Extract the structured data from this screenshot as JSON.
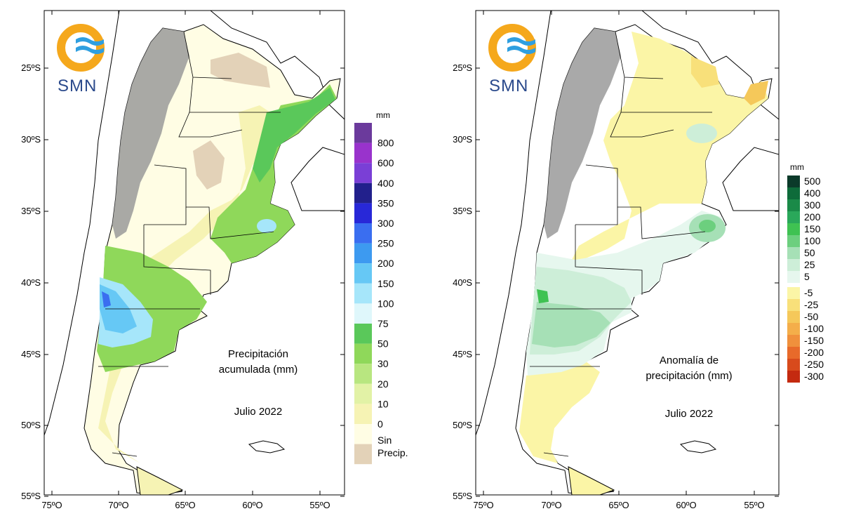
{
  "logo": {
    "text": "SMN"
  },
  "axes": {
    "lat_labels": [
      "25ºS",
      "30ºS",
      "35ºS",
      "40ºS",
      "45ºS",
      "50ºS",
      "55ºS"
    ],
    "lon_labels": [
      "75ºO",
      "70ºO",
      "65ºO",
      "60ºO",
      "55ºO"
    ]
  },
  "left_map": {
    "title_line1": "Precipitación",
    "title_line2": "acumulada (mm)",
    "period": "Julio 2022",
    "legend_unit": "mm",
    "legend": [
      {
        "label": "800",
        "color": "#6b3a9c"
      },
      {
        "label": "600",
        "color": "#9933cc"
      },
      {
        "label": "400",
        "color": "#7a3fd6"
      },
      {
        "label": "350",
        "color": "#22208c"
      },
      {
        "label": "300",
        "color": "#2828d8"
      },
      {
        "label": "250",
        "color": "#3a6ef0"
      },
      {
        "label": "200",
        "color": "#3d9af0"
      },
      {
        "label": "150",
        "color": "#66c8f5"
      },
      {
        "label": "100",
        "color": "#a6e6fa"
      },
      {
        "label": "75",
        "color": "#dff7fb"
      },
      {
        "label": "50",
        "color": "#5ac85a"
      },
      {
        "label": "30",
        "color": "#8fd85a"
      },
      {
        "label": "20",
        "color": "#b8e680"
      },
      {
        "label": "10",
        "color": "#e2f2a6"
      },
      {
        "label": "0",
        "color": "#f6f3b4"
      },
      {
        "label": "",
        "color": "#fffde4"
      },
      {
        "label": "Sin",
        "color": "#e3d2b8"
      }
    ],
    "legend_last_label_line2": "Precip."
  },
  "right_map": {
    "title_line1": "Anomalía de",
    "title_line2": "precipitación (mm)",
    "period": "Julio 2022",
    "legend_unit": "mm",
    "legend_positive": [
      {
        "label": "500",
        "color": "#0b3a2a"
      },
      {
        "label": "400",
        "color": "#0e6b3a"
      },
      {
        "label": "300",
        "color": "#1a8a48"
      },
      {
        "label": "200",
        "color": "#2aa85a"
      },
      {
        "label": "150",
        "color": "#3fc252"
      },
      {
        "label": "100",
        "color": "#6ccf7e"
      },
      {
        "label": "50",
        "color": "#a6e0b6"
      },
      {
        "label": "25",
        "color": "#cdeed8"
      },
      {
        "label": "5",
        "color": "#e6f7ee"
      }
    ],
    "legend_negative": [
      {
        "label": "-5",
        "color": "#fbf5a6"
      },
      {
        "label": "-25",
        "color": "#f8e07a"
      },
      {
        "label": "-50",
        "color": "#f5c85a"
      },
      {
        "label": "-100",
        "color": "#f4ae4a"
      },
      {
        "label": "-150",
        "color": "#f0903c"
      },
      {
        "label": "-200",
        "color": "#e86a2a"
      },
      {
        "label": "-250",
        "color": "#d84a1c"
      },
      {
        "label": "-300",
        "color": "#c42a10"
      }
    ]
  }
}
